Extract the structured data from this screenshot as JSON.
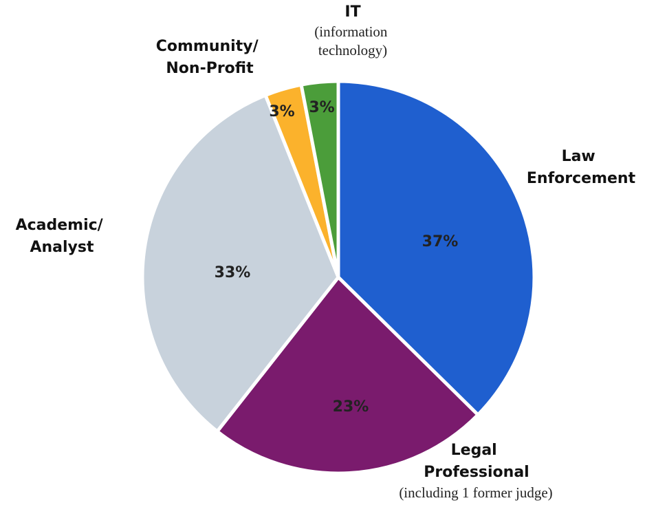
{
  "chart_data": {
    "type": "pie",
    "categories": [
      "Law Enforcement",
      "Legal Professional",
      "Academic/ Analyst",
      "Community/ Non-Profit",
      "IT"
    ],
    "values": [
      37,
      23,
      33,
      3,
      3
    ],
    "value_labels": [
      "37%",
      "23%",
      "33%",
      "3%",
      "3%"
    ],
    "colors": [
      "#1f5fcf",
      "#7a1b6d",
      "#c8d2dc",
      "#fbb22c",
      "#4b9d3a"
    ],
    "annotations": [
      "(information technology)",
      "(including 1 former judge)"
    ]
  }
}
